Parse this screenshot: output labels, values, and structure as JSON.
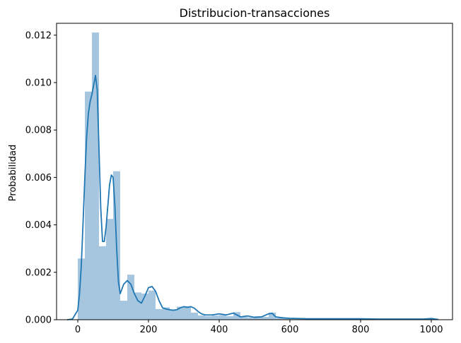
{
  "chart_data": {
    "type": "bar",
    "title": "Distribucion-transacciones",
    "xlabel": "",
    "ylabel": "Probabilidad",
    "xlim": [
      -60,
      1060
    ],
    "ylim": [
      0,
      0.0125
    ],
    "grid": false,
    "xticks": [
      0,
      200,
      400,
      600,
      800,
      1000
    ],
    "xtick_labels": [
      "0",
      "200",
      "400",
      "600",
      "800",
      "1000"
    ],
    "yticks": [
      0,
      0.002,
      0.004,
      0.006,
      0.008,
      0.01,
      0.012
    ],
    "ytick_labels": [
      "0.000",
      "0.002",
      "0.004",
      "0.006",
      "0.008",
      "0.010",
      "0.012"
    ],
    "bar_color": "#a6c6e0",
    "line_color": "#1f77b4",
    "histogram": {
      "bin_edges": [
        0,
        20,
        40,
        60,
        80,
        100,
        120,
        140,
        160,
        180,
        200,
        220,
        240,
        260,
        280,
        300,
        320,
        340,
        360,
        380,
        400,
        420,
        440,
        460,
        480,
        500,
        520,
        540,
        560,
        580,
        600,
        620,
        640,
        660,
        680,
        700,
        720,
        740,
        760,
        780,
        800,
        820,
        840,
        860,
        880,
        900,
        920,
        940,
        960,
        980,
        1000
      ],
      "densities": [
        0.00258,
        0.00962,
        0.01211,
        0.0031,
        0.00425,
        0.00626,
        0.0008,
        0.0019,
        0.00115,
        0.0011,
        0.00123,
        0.00045,
        0.00052,
        0.0004,
        0.00055,
        0.00057,
        0.0003,
        0.00018,
        0.00015,
        0.00018,
        0.0002,
        0.00015,
        0.00032,
        0.00012,
        0.0001,
        0.00015,
        0.00012,
        0.0003,
        8e-05,
        6e-05,
        5e-05,
        4e-05,
        5e-05,
        3e-05,
        3e-05,
        3e-05,
        3e-05,
        3e-05,
        2e-05,
        5e-05,
        4e-05,
        3e-05,
        3e-05,
        2e-05,
        3e-05,
        3e-05,
        2e-05,
        3e-05,
        4e-05,
        6e-05
      ]
    },
    "kde": {
      "x": [
        -30,
        -15,
        0,
        5,
        10,
        15,
        20,
        25,
        30,
        35,
        40,
        45,
        50,
        55,
        60,
        65,
        70,
        75,
        80,
        85,
        90,
        95,
        100,
        105,
        110,
        115,
        120,
        125,
        130,
        140,
        150,
        160,
        170,
        180,
        190,
        200,
        210,
        220,
        230,
        240,
        250,
        260,
        270,
        280,
        290,
        300,
        310,
        320,
        330,
        340,
        350,
        360,
        380,
        400,
        420,
        440,
        460,
        480,
        500,
        520,
        540,
        550,
        560,
        580,
        600,
        650,
        700,
        750,
        800,
        850,
        900,
        950,
        980,
        1000,
        1020
      ],
      "y": [
        0,
        3e-05,
        0.0004,
        0.0011,
        0.0023,
        0.0041,
        0.006,
        0.0077,
        0.0087,
        0.0092,
        0.0095,
        0.0099,
        0.0103,
        0.0097,
        0.0072,
        0.0047,
        0.0033,
        0.0033,
        0.0039,
        0.0048,
        0.0057,
        0.0061,
        0.006,
        0.0048,
        0.003,
        0.0016,
        0.0011,
        0.0013,
        0.0015,
        0.00165,
        0.0015,
        0.0011,
        0.0008,
        0.0007,
        0.001,
        0.00135,
        0.0014,
        0.0012,
        0.0008,
        0.0005,
        0.00045,
        0.00042,
        0.0004,
        0.00042,
        0.0005,
        0.00055,
        0.00052,
        0.00055,
        0.00048,
        0.00035,
        0.00025,
        0.0002,
        0.0002,
        0.00025,
        0.0002,
        0.00028,
        0.00012,
        0.00016,
        0.0001,
        0.00012,
        0.00025,
        0.00027,
        0.00012,
        8e-05,
        6e-05,
        4e-05,
        4e-05,
        4e-05,
        4e-05,
        3e-05,
        3e-05,
        3e-05,
        3e-05,
        5e-05,
        1e-05
      ]
    }
  }
}
